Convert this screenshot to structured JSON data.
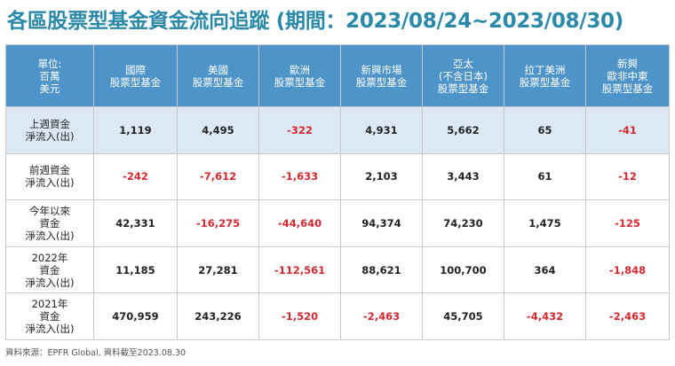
{
  "title": "各區股票型基金資金流向追蹤 (期間：2023/08/24~2023/08/30)",
  "table": {
    "corner": [
      "單位:",
      "百萬",
      "美元"
    ],
    "columns": [
      [
        "國際",
        "股票型基金"
      ],
      [
        "美國",
        "股票型基金"
      ],
      [
        "歐洲",
        "股票型基金"
      ],
      [
        "新興市場",
        "股票型基金"
      ],
      [
        "亞太",
        "(不含日本)",
        "股票型基金"
      ],
      [
        "拉丁美洲",
        "股票型基金"
      ],
      [
        "新興",
        "歐非中東",
        "股票型基金"
      ]
    ],
    "rows": [
      {
        "label": [
          "上週資金",
          "淨流入(出)"
        ],
        "values": [
          "1,119",
          "4,495",
          "-322",
          "4,931",
          "5,662",
          "65",
          "-41"
        ]
      },
      {
        "label": [
          "前週資金",
          "淨流入(出)"
        ],
        "values": [
          "-242",
          "-7,612",
          "-1,633",
          "2,103",
          "3,443",
          "61",
          "-12"
        ]
      },
      {
        "label": [
          "今年以來",
          "資金",
          "淨流入(出)"
        ],
        "values": [
          "42,331",
          "-16,275",
          "-44,640",
          "94,374",
          "74,230",
          "1,475",
          "-125"
        ]
      },
      {
        "label": [
          "2022年",
          "資金",
          "淨流入(出)"
        ],
        "values": [
          "11,185",
          "27,281",
          "-112,561",
          "88,621",
          "100,700",
          "364",
          "-1,848"
        ]
      },
      {
        "label": [
          "2021年",
          "資金",
          "淨流入(出)"
        ],
        "values": [
          "470,959",
          "243,226",
          "-1,520",
          "-2,463",
          "45,705",
          "-4,432",
          "-2,463"
        ]
      }
    ]
  },
  "footnote": "資料來源：EPFR Global, 資料截至2023.08.30",
  "colors": {
    "title": "#2b89a8",
    "header_bg": "#4e94c9",
    "highlight_row": "#dce9f5",
    "negative": "#d8282f"
  }
}
